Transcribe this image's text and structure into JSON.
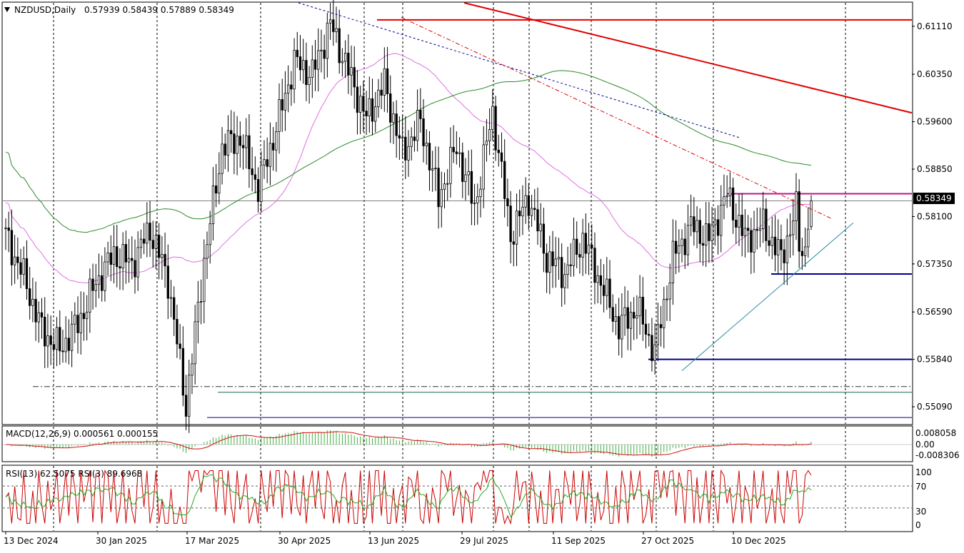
{
  "header": {
    "symbol": "NZDUSD,Daily",
    "ohlc": "0.57939 0.58439 0.57889 0.58349"
  },
  "macd": {
    "label": "MACD(12,26,9) 0.000561 0.000155",
    "ticks": [
      "0.008058",
      "0.00",
      "-0.008306"
    ]
  },
  "rsi": {
    "label": "RSI(13) 62.5075  RSI(3) 89.6968",
    "ticks": [
      "100",
      "70",
      "30",
      "0"
    ]
  },
  "current_price_label": "0.58349",
  "chart_data": {
    "type": "candlestick",
    "symbol": "NZDUSD",
    "timeframe": "Daily",
    "ylim": [
      0.5482,
      0.6148
    ],
    "y_ticks": [
      "0.61110",
      "0.60350",
      "0.59600",
      "0.58850",
      "0.58100",
      "0.57350",
      "0.56590",
      "0.55840",
      "0.55090"
    ],
    "x_ticks": [
      "13 Dec 2024",
      "30 Jan 2025",
      "17 Mar 2025",
      "30 Apr 2025",
      "13 Jun 2025",
      "29 Jul 2025",
      "11 Sep 2025",
      "27 Oct 2025",
      "10 Dec 2025"
    ],
    "key_closes": [
      0.578,
      0.5715,
      0.563,
      0.56,
      0.564,
      0.5705,
      0.575,
      0.5735,
      0.579,
      0.571,
      0.551,
      0.574,
      0.592,
      0.5935,
      0.5855,
      0.595,
      0.6055,
      0.6035,
      0.6115,
      0.604,
      0.5965,
      0.602,
      0.591,
      0.596,
      0.584,
      0.592,
      0.5825,
      0.5975,
      0.578,
      0.584,
      0.5745,
      0.572,
      0.5775,
      0.5705,
      0.5635,
      0.5665,
      0.5595,
      0.5745,
      0.5795,
      0.5775,
      0.5845,
      0.5775,
      0.5795,
      0.5745,
      0.5835
    ],
    "last": {
      "open": 0.57939,
      "high": 0.58439,
      "low": 0.57889,
      "close": 0.58349
    },
    "horizontal_levels": [
      0.6121,
      0.5846,
      0.5719,
      0.5584,
      0.5541,
      0.5532,
      0.5492
    ],
    "indicators": {
      "ma_fast": {
        "color": "#e070e0"
      },
      "ma_slow": {
        "color": "#2a8a2a"
      },
      "macd_params": "12,26,9",
      "macd_values": [
        0.000561,
        0.000155
      ],
      "rsi13": 62.5075,
      "rsi3": 89.6968
    }
  }
}
